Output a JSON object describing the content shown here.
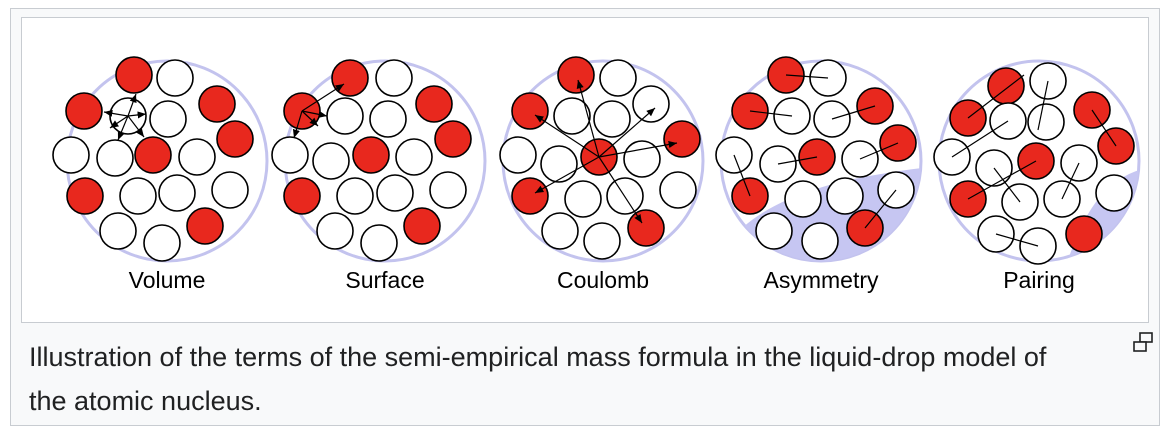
{
  "panels": [
    {
      "label": "Volume"
    },
    {
      "label": "Surface"
    },
    {
      "label": "Coulomb"
    },
    {
      "label": "Asymmetry"
    },
    {
      "label": "Pairing"
    }
  ],
  "caption": "Illustration of the terms of the semi-empirical mass formula in the liquid-drop model of the atomic nucleus.",
  "enlarge_icon": "enlarge-icon",
  "colors": {
    "proton": "#e8281e",
    "neutron": "#ffffff",
    "nucleus_outline": "#c3c3ee",
    "shaded_region": "#c6c6f2",
    "frame_border": "#c8ccd1",
    "caption_background": "#f8f9fa"
  }
}
